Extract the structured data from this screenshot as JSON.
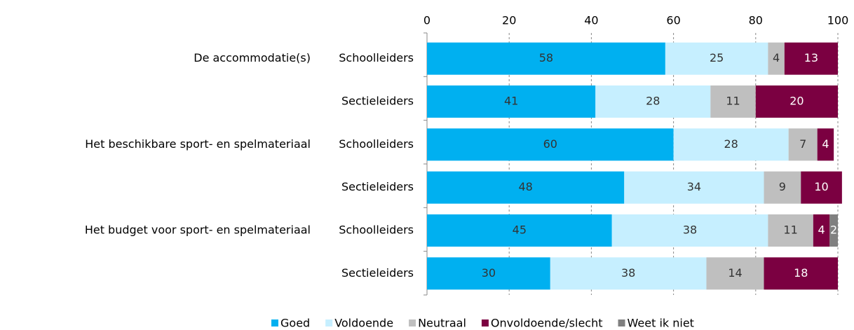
{
  "chart_data": {
    "type": "stacked_barh",
    "categories": [
      [
        "De accommodatie(s)",
        "Schoolleiders"
      ],
      [
        null,
        "Sectieleiders"
      ],
      [
        "Het beschikbare sport- en spelmateriaal",
        "Schoolleiders"
      ],
      [
        null,
        "Sectieleiders"
      ],
      [
        "Het budget voor sport- en spelmateriaal",
        "Schoolleiders"
      ],
      [
        null,
        "Sectieleiders"
      ]
    ],
    "series": [
      {
        "name": "Goed",
        "color": "#00b0f0",
        "values": [
          58,
          41,
          60,
          48,
          45,
          30
        ]
      },
      {
        "name": "Voldoende",
        "color": "#c6efff",
        "values": [
          25,
          28,
          28,
          34,
          38,
          38
        ]
      },
      {
        "name": "Neutraal",
        "color": "#bfbfbf",
        "values": [
          4,
          11,
          7,
          9,
          11,
          14
        ]
      },
      {
        "name": "Onvoldoende/slecht",
        "color": "#7b0041",
        "values": [
          13,
          20,
          4,
          10,
          4,
          18
        ]
      },
      {
        "name": "Weet ik niet",
        "color": "#808080",
        "values": [
          null,
          null,
          null,
          null,
          2,
          null
        ]
      }
    ],
    "xlim": [
      0,
      100
    ],
    "xticks": [
      0,
      20,
      40,
      60,
      80,
      100
    ],
    "grid": true,
    "legend": "bottom"
  }
}
